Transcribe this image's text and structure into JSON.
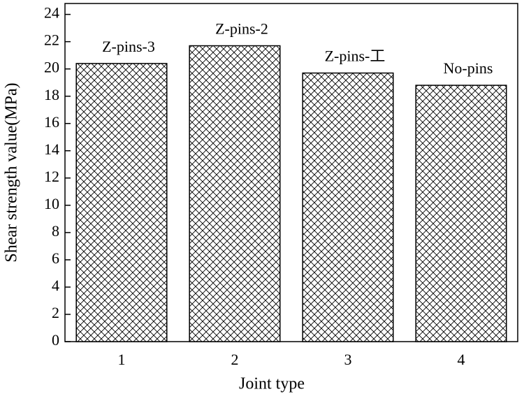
{
  "chart_data": {
    "type": "bar",
    "categories": [
      "1",
      "2",
      "3",
      "4"
    ],
    "values": [
      20.4,
      21.7,
      19.7,
      18.8
    ],
    "bar_labels": [
      "Z-pins-3",
      "Z-pins-2",
      "Z-pins-工",
      "No-pins"
    ],
    "color": "#000000",
    "xlabel": "Joint type",
    "ylabel": "Shear strength value(MPa)",
    "ylim": [
      0,
      24.8
    ],
    "yticks": [
      0,
      2,
      4,
      6,
      8,
      10,
      12,
      14,
      16,
      18,
      20,
      22,
      24
    ]
  }
}
